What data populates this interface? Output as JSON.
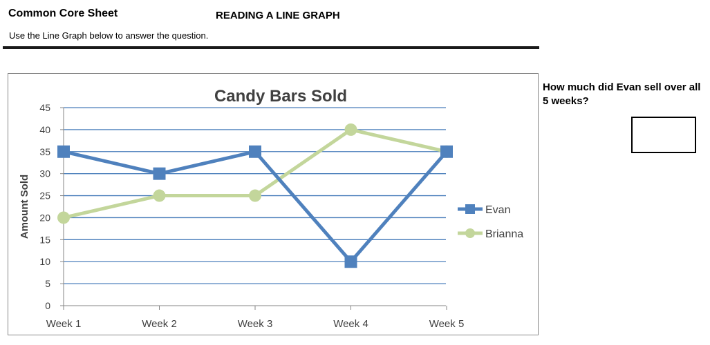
{
  "header": {
    "sheet_title": "Common Core Sheet",
    "title": "READING A LINE GRAPH",
    "instructions": "Use the Line Graph below to answer the question."
  },
  "question": {
    "text": "How much did Evan sell over all 5 weeks?",
    "answer": ""
  },
  "colors": {
    "evan": "#4F81BD",
    "brianna": "#C3D69B",
    "gridline": "#4A7EBB",
    "axis": "#868686"
  },
  "chart_data": {
    "type": "line",
    "title": "Candy Bars Sold",
    "xlabel": "",
    "ylabel": "Amount Sold",
    "categories": [
      "Week 1",
      "Week 2",
      "Week 3",
      "Week 4",
      "Week 5"
    ],
    "yticks": [
      0,
      5,
      10,
      15,
      20,
      25,
      30,
      35,
      40,
      45
    ],
    "ylim": [
      0,
      45
    ],
    "grid": true,
    "legend_position": "right",
    "series": [
      {
        "name": "Evan",
        "marker": "square",
        "values": [
          35,
          30,
          35,
          10,
          35
        ]
      },
      {
        "name": "Brianna",
        "marker": "circle",
        "values": [
          20,
          25,
          25,
          40,
          35
        ]
      }
    ]
  }
}
